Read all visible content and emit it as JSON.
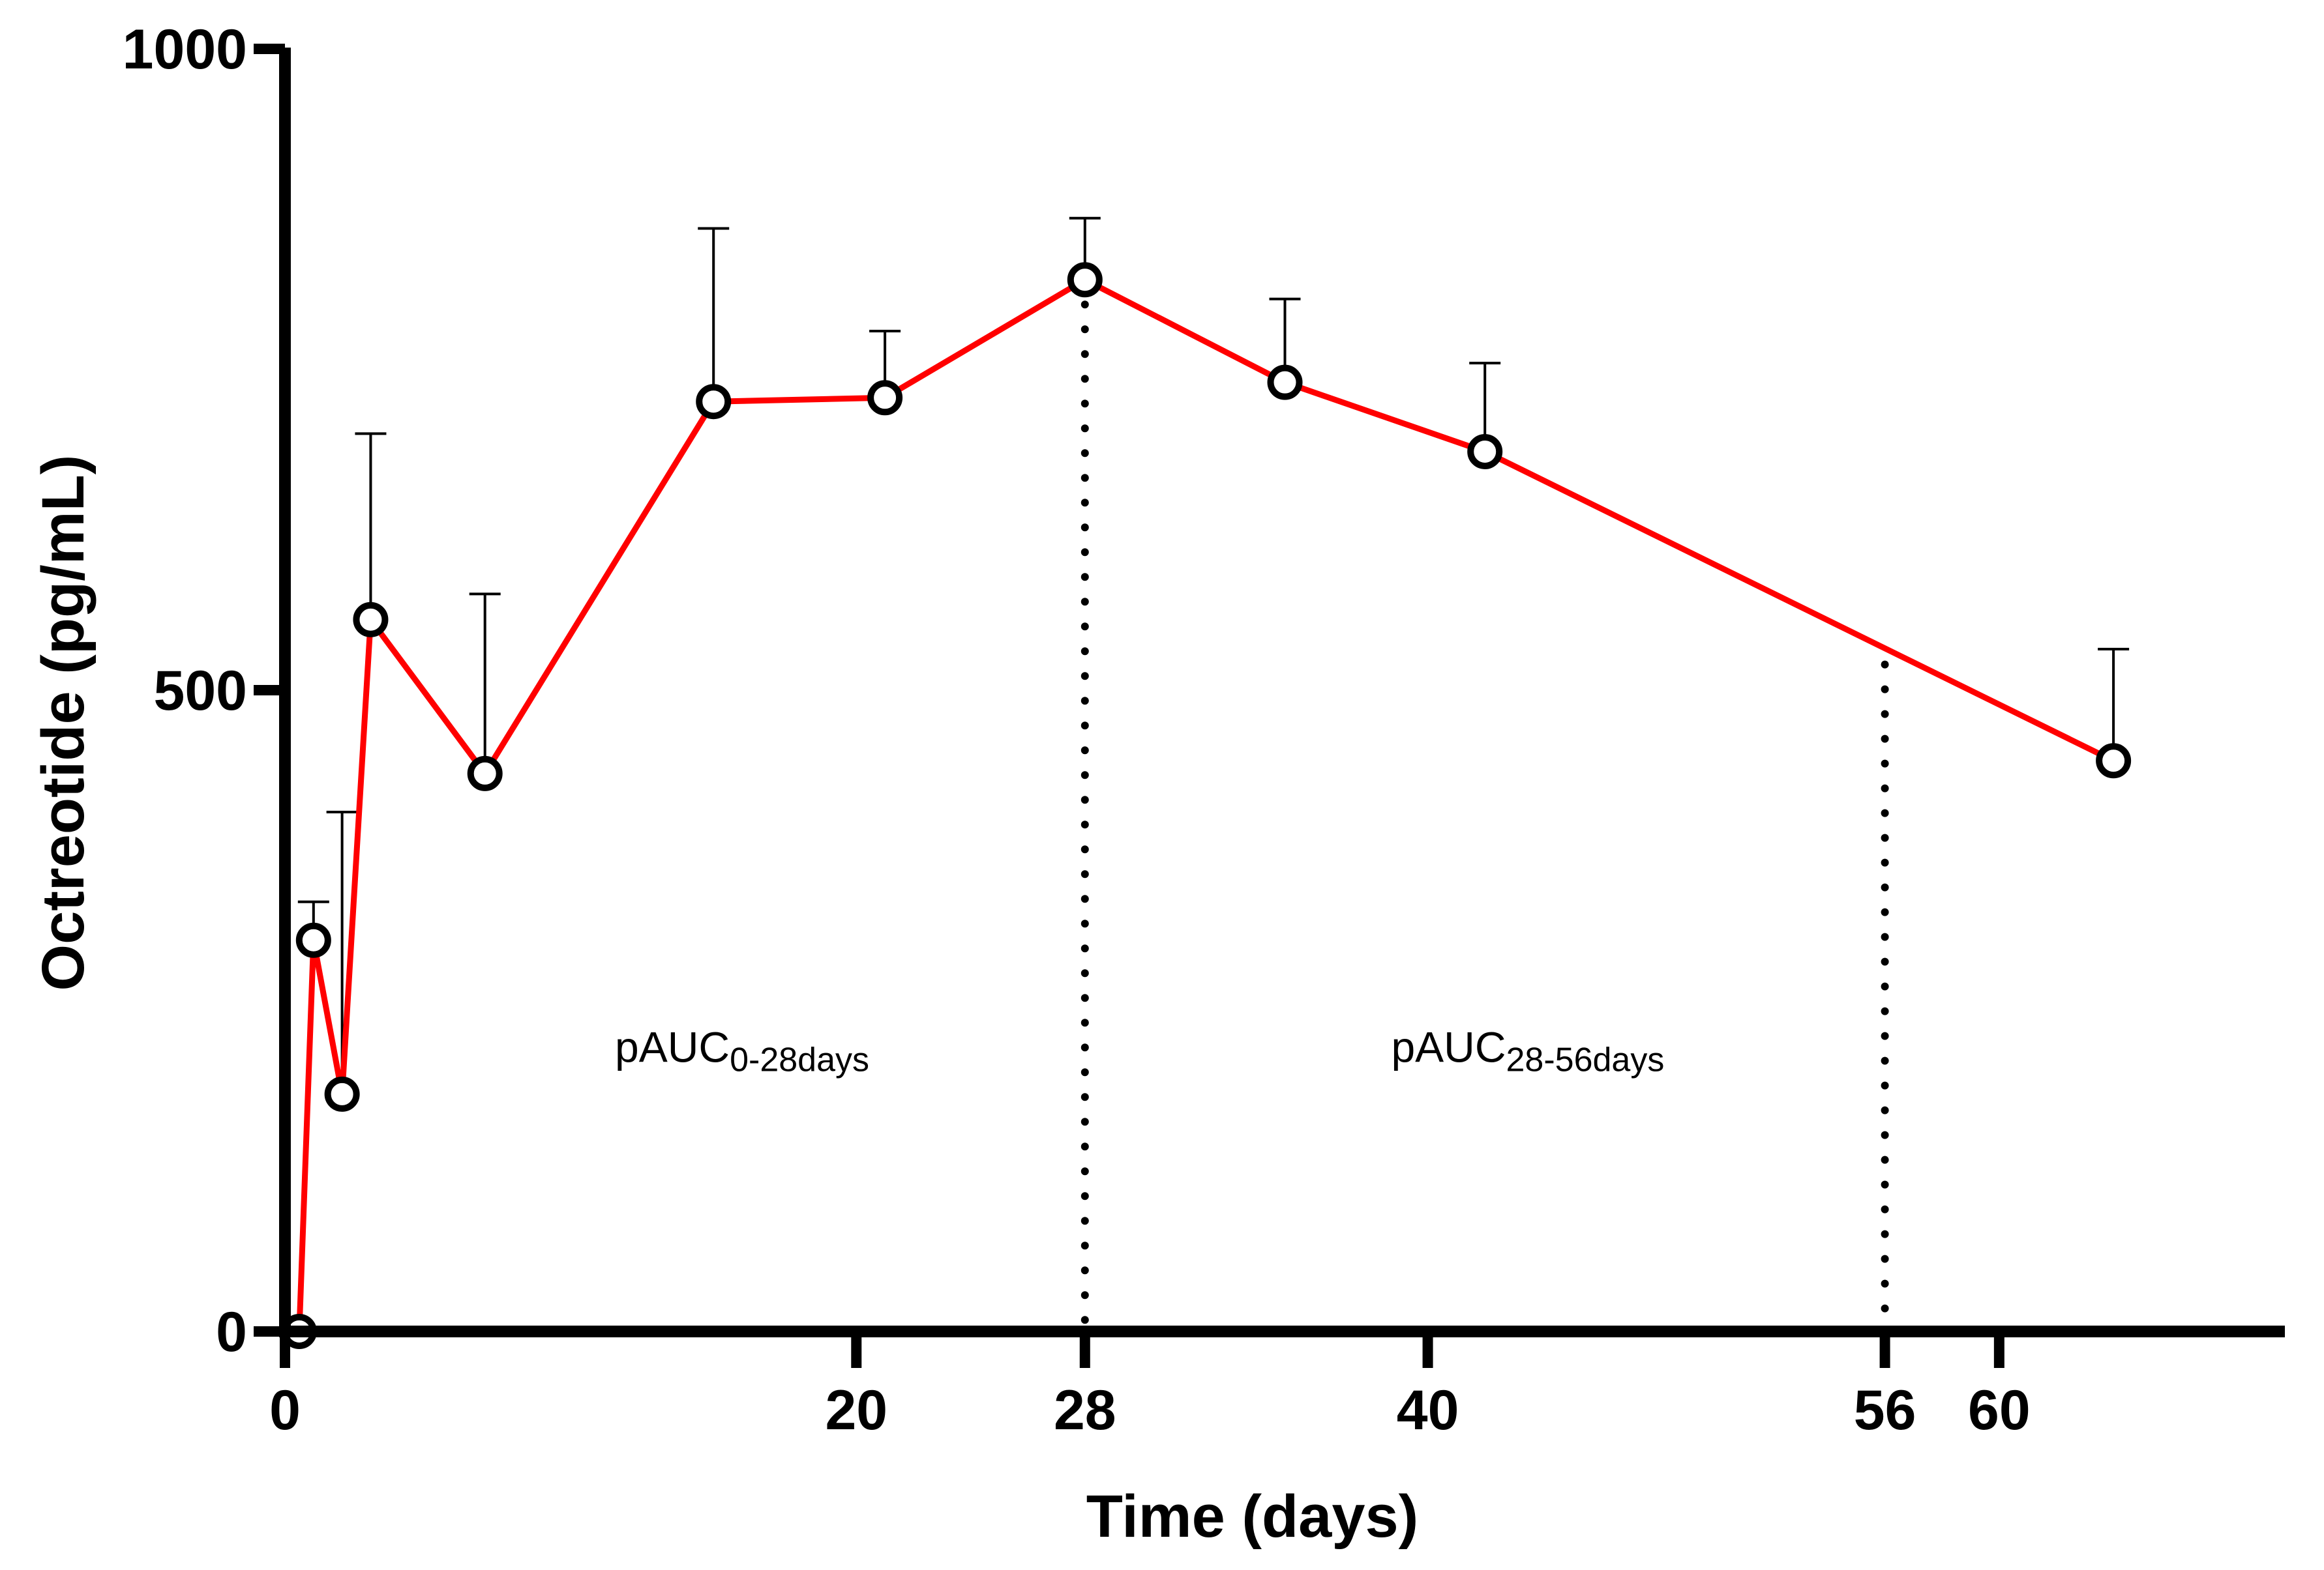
{
  "chart_data": {
    "type": "line",
    "title": "",
    "xlabel": "Time (days)",
    "ylabel": "Octreotide (pg/mL)",
    "xlim": [
      0,
      70
    ],
    "ylim": [
      0,
      1000
    ],
    "xticks": [
      0,
      20,
      28,
      40,
      56,
      60
    ],
    "yticks": [
      0,
      500,
      1000
    ],
    "series": [
      {
        "name": "Octreotide",
        "color": "#ff0000",
        "x": [
          0.5,
          1,
          2,
          3,
          7,
          15,
          21,
          28,
          35,
          42,
          64
        ],
        "y": [
          0,
          305,
          185,
          555,
          435,
          725,
          728,
          820,
          740,
          686,
          445
        ],
        "error_upper": [
          0,
          335,
          405,
          700,
          575,
          860,
          780,
          868,
          805,
          755,
          532
        ]
      }
    ],
    "reference_lines": [
      {
        "x": 28,
        "style": "dotted",
        "y_top": 820
      },
      {
        "x": 56,
        "style": "dotted",
        "y_top": 520
      }
    ],
    "annotations": [
      {
        "main": "pAUC",
        "sub": "0-28days",
        "x": 16,
        "y": 210
      },
      {
        "main": "pAUC",
        "sub": "28-56days",
        "x": 43.5,
        "y": 210
      }
    ]
  }
}
